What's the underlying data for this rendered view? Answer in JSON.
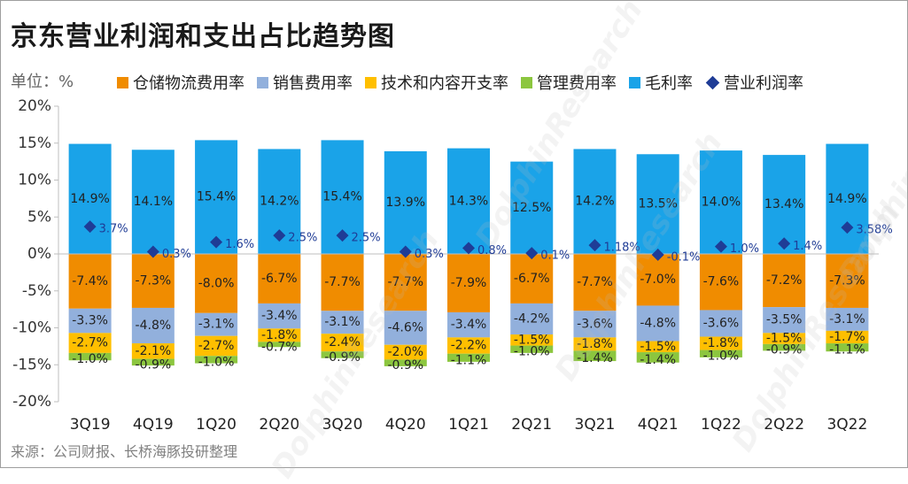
{
  "title": "京东营业利润和支出占比趋势图",
  "unit": "单位：%",
  "source": "来源：公司财报、长桥海豚投研整理",
  "watermark": "DolphinResearch",
  "legend": [
    {
      "label": "仓储物流费用率",
      "color": "#f08c00",
      "kind": "box"
    },
    {
      "label": "销售费用率",
      "color": "#92b0dc",
      "kind": "box"
    },
    {
      "label": "技术和内容开支率",
      "color": "#ffbf00",
      "kind": "box"
    },
    {
      "label": "管理费用率",
      "color": "#8cc63f",
      "kind": "box"
    },
    {
      "label": "毛利率",
      "color": "#1aa3e8",
      "kind": "box"
    },
    {
      "label": "营业利润率",
      "color": "#1f3c96",
      "kind": "diamond"
    }
  ],
  "chart_data": {
    "type": "bar",
    "stacked": true,
    "categories": [
      "3Q19",
      "4Q19",
      "1Q20",
      "2Q20",
      "3Q20",
      "4Q20",
      "1Q21",
      "2Q21",
      "3Q21",
      "4Q21",
      "1Q22",
      "2Q22",
      "3Q22"
    ],
    "ylim": [
      -20,
      20
    ],
    "yticks": [
      -20,
      -15,
      -10,
      -5,
      0,
      5,
      10,
      15,
      20
    ],
    "ytick_labels": [
      "-20%",
      "-15%",
      "-10%",
      "-5%",
      "0%",
      "5%",
      "10%",
      "15%",
      "20%"
    ],
    "gridlines": false,
    "series": [
      {
        "name": "毛利率",
        "color": "#1aa3e8",
        "values": [
          14.9,
          14.1,
          15.4,
          14.2,
          15.4,
          13.9,
          14.3,
          12.5,
          14.2,
          13.5,
          14.0,
          13.4,
          14.9
        ],
        "labels": [
          "14.9%",
          "14.1%",
          "15.4%",
          "14.2%",
          "15.4%",
          "13.9%",
          "14.3%",
          "12.5%",
          "14.2%",
          "13.5%",
          "14.0%",
          "13.4%",
          "14.9%"
        ]
      },
      {
        "name": "仓储物流费用率",
        "color": "#f08c00",
        "values": [
          -7.4,
          -7.3,
          -8.0,
          -6.7,
          -7.7,
          -7.7,
          -7.9,
          -6.7,
          -7.7,
          -7.0,
          -7.6,
          -7.2,
          -7.3
        ],
        "labels": [
          "-7.4%",
          "-7.3%",
          "-8.0%",
          "-6.7%",
          "-7.7%",
          "-7.7%",
          "-7.9%",
          "-6.7%",
          "-7.7%",
          "-7.0%",
          "-7.6%",
          "-7.2%",
          "-7.3%"
        ]
      },
      {
        "name": "销售费用率",
        "color": "#92b0dc",
        "values": [
          -3.3,
          -4.8,
          -3.1,
          -3.4,
          -3.1,
          -4.6,
          -3.4,
          -4.2,
          -3.6,
          -4.8,
          -3.6,
          -3.5,
          -3.1
        ],
        "labels": [
          "-3.3%",
          "-4.8%",
          "-3.1%",
          "-3.4%",
          "-3.1%",
          "-4.6%",
          "-3.4%",
          "-4.2%",
          "-3.6%",
          "-4.8%",
          "-3.6%",
          "-3.5%",
          "-3.1%"
        ]
      },
      {
        "name": "技术和内容开支率",
        "color": "#ffbf00",
        "values": [
          -2.7,
          -2.1,
          -2.7,
          -1.8,
          -2.4,
          -2.0,
          -2.2,
          -1.5,
          -1.8,
          -1.5,
          -1.8,
          -1.5,
          -1.7
        ],
        "labels": [
          "-2.7%",
          "-2.1%",
          "-2.7%",
          "-1.8%",
          "-2.4%",
          "-2.0%",
          "-2.2%",
          "-1.5%",
          "-1.8%",
          "-1.5%",
          "-1.8%",
          "-1.5%",
          "-1.7%"
        ]
      },
      {
        "name": "管理费用率",
        "color": "#8cc63f",
        "values": [
          -1.0,
          -0.9,
          -1.0,
          -0.7,
          -0.9,
          -0.9,
          -1.1,
          -1.0,
          -1.4,
          -1.4,
          -1.0,
          -0.9,
          -1.1
        ],
        "labels": [
          "-1.0%",
          "-0.9%",
          "-1.0%",
          "-0.7%",
          "-0.9%",
          "-0.9%",
          "-1.1%",
          "-1.0%",
          "-1.4%",
          "-1.4%",
          "-1.0%",
          "-0.9%",
          "-1.1%"
        ]
      }
    ],
    "line_series": {
      "name": "营业利润率",
      "color": "#1f3c96",
      "marker": "diamond",
      "values": [
        3.7,
        0.3,
        1.6,
        2.5,
        2.5,
        0.3,
        0.8,
        0.1,
        1.18,
        -0.1,
        1.0,
        1.4,
        3.58
      ],
      "labels": [
        "3.7%",
        "0.3%",
        "1.6%",
        "2.5%",
        "2.5%",
        "0.3%",
        "0.8%",
        "0.1%",
        "1.18%",
        "-0.1%",
        "1.0%",
        "1.4%",
        "3.58%"
      ]
    }
  }
}
